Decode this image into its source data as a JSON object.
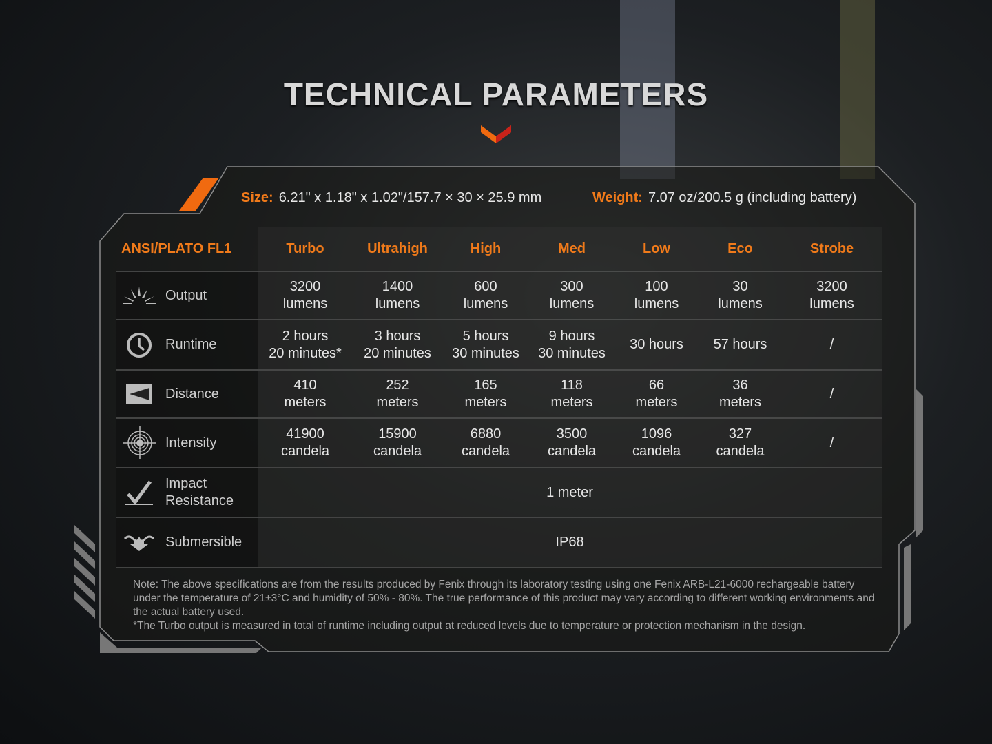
{
  "title": "TECHNICAL PARAMETERS",
  "specs": {
    "size_label": "Size:",
    "size_value": "6.21\" x 1.18\" x 1.02\"/157.7 × 30 × 25.9 mm",
    "weight_label": "Weight:",
    "weight_value": "7.07 oz/200.5 g (including battery)"
  },
  "accent": "#f07a1a",
  "table": {
    "header": [
      "ANSI/PLATO FL1",
      "Turbo",
      "Ultrahigh",
      "High",
      "Med",
      "Low",
      "Eco",
      "Strobe"
    ],
    "rows": [
      {
        "label": "Output",
        "icon": "sun-rays-icon",
        "values": [
          "3200\nlumens",
          "1400\nlumens",
          "600\nlumens",
          "300\nlumens",
          "100\nlumens",
          "30\nlumens",
          "3200\nlumens"
        ]
      },
      {
        "label": "Runtime",
        "icon": "clock-icon",
        "values": [
          "2 hours\n20 minutes*",
          "3 hours\n20 minutes",
          "5 hours\n30 minutes",
          "9 hours\n30 minutes",
          "30 hours",
          "57 hours",
          "/"
        ]
      },
      {
        "label": "Distance",
        "icon": "distance-icon",
        "values": [
          "410\nmeters",
          "252\nmeters",
          "165\nmeters",
          "118\nmeters",
          "66\nmeters",
          "36\nmeters",
          "/"
        ]
      },
      {
        "label": "Intensity",
        "icon": "target-icon",
        "values": [
          "41900\ncandela",
          "15900\ncandela",
          "6880\ncandela",
          "3500\ncandela",
          "1096\ncandela",
          "327\ncandela",
          "/"
        ]
      },
      {
        "label": "Impact\nResistance",
        "icon": "impact-icon",
        "value": "1 meter"
      },
      {
        "label": "Submersible",
        "icon": "water-icon",
        "value": "IP68"
      }
    ]
  },
  "note": "Note: The above specifications are from the results produced by Fenix through its laboratory testing using one Fenix ARB-L21-6000 rechargeable battery under the temperature of 21±3°C and humidity of 50% - 80%. The true performance of this product may vary according to different working environments and the actual battery used.",
  "footnote": "*The Turbo output is measured in total of runtime including output at reduced levels due to temperature or protection mechanism in the design."
}
